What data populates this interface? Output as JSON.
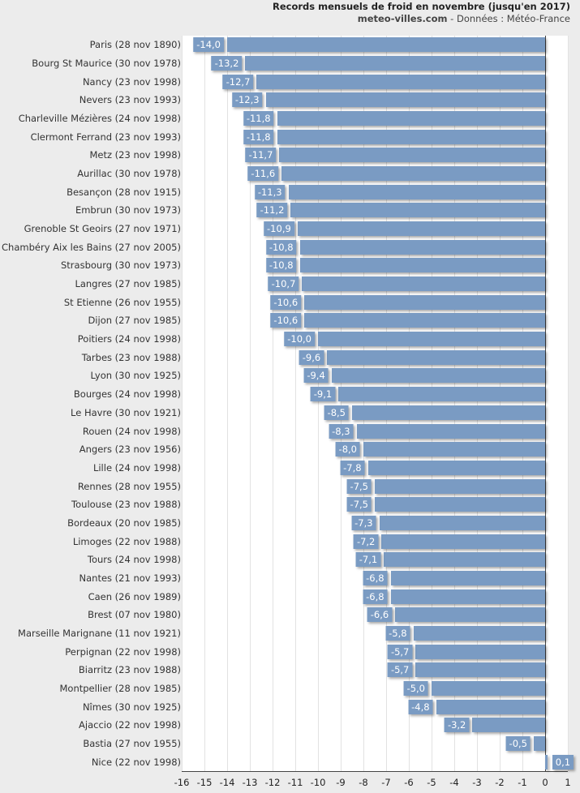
{
  "chart_data": {
    "type": "bar",
    "orientation": "horizontal",
    "title": "Records mensuels de froid en novembre (jusqu'en 2017)",
    "subtitle_site": "meteo-villes.com",
    "subtitle_source": " - Données : Météo-France",
    "xlim": [
      -16,
      1
    ],
    "xticks": [
      -16,
      -15,
      -14,
      -13,
      -12,
      -11,
      -10,
      -9,
      -8,
      -7,
      -6,
      -5,
      -4,
      -3,
      -2,
      -1,
      0,
      1
    ],
    "grid": true,
    "bar_color": "#7a9bc3",
    "categories": [
      "Paris (28 nov 1890)",
      "Bourg St Maurice (30 nov 1978)",
      "Nancy (23 nov 1998)",
      "Nevers (23 nov 1993)",
      "Charleville Mézières (24 nov 1998)",
      "Clermont Ferrand (23 nov 1993)",
      "Metz (23 nov 1998)",
      "Aurillac (30 nov 1978)",
      "Besançon (28 nov 1915)",
      "Embrun (30 nov 1973)",
      "Grenoble St Geoirs (27 nov 1971)",
      "Chambéry Aix les Bains (27 nov 2005)",
      "Strasbourg (30 nov 1973)",
      "Langres (27 nov 1985)",
      "St Etienne (26 nov 1955)",
      "Dijon (27 nov 1985)",
      "Poitiers (24 nov 1998)",
      "Tarbes (23 nov 1988)",
      "Lyon (30 nov 1925)",
      "Bourges (24 nov 1998)",
      "Le Havre (30 nov 1921)",
      "Rouen (24 nov 1998)",
      "Angers (23 nov 1956)",
      "Lille (24 nov 1998)",
      "Rennes (28 nov 1955)",
      "Toulouse (23 nov 1988)",
      "Bordeaux (20 nov 1985)",
      "Limoges (22 nov 1988)",
      "Tours (24 nov 1998)",
      "Nantes (21 nov 1993)",
      "Caen (26 nov 1989)",
      "Brest (07 nov 1980)",
      "Marseille Marignane (11 nov 1921)",
      "Perpignan (22 nov 1998)",
      "Biarritz (23 nov 1988)",
      "Montpellier (28 nov 1985)",
      "Nîmes (30 nov 1925)",
      "Ajaccio (22 nov 1998)",
      "Bastia (27 nov 1955)",
      "Nice (22 nov 1998)"
    ],
    "values": [
      -14.0,
      -13.2,
      -12.7,
      -12.3,
      -11.8,
      -11.8,
      -11.7,
      -11.6,
      -11.3,
      -11.2,
      -10.9,
      -10.8,
      -10.8,
      -10.7,
      -10.6,
      -10.6,
      -10.0,
      -9.6,
      -9.4,
      -9.1,
      -8.5,
      -8.3,
      -8.0,
      -7.8,
      -7.5,
      -7.5,
      -7.3,
      -7.2,
      -7.1,
      -6.8,
      -6.8,
      -6.6,
      -5.8,
      -5.7,
      -5.7,
      -5.0,
      -4.8,
      -3.2,
      -0.5,
      0.1
    ],
    "data_labels": [
      "-14,0",
      "-13,2",
      "-12,7",
      "-12,3",
      "-11,8",
      "-11,8",
      "-11,7",
      "-11,6",
      "-11,3",
      "-11,2",
      "-10,9",
      "-10,8",
      "-10,8",
      "-10,7",
      "-10,6",
      "-10,6",
      "-10,0",
      "-9,6",
      "-9,4",
      "-9,1",
      "-8,5",
      "-8,3",
      "-8,0",
      "-7,8",
      "-7,5",
      "-7,5",
      "-7,3",
      "-7,2",
      "-7,1",
      "-6,8",
      "-6,8",
      "-6,6",
      "-5,8",
      "-5,7",
      "-5,7",
      "-5,0",
      "-4,8",
      "-3,2",
      "-0,5",
      "0,1"
    ]
  }
}
